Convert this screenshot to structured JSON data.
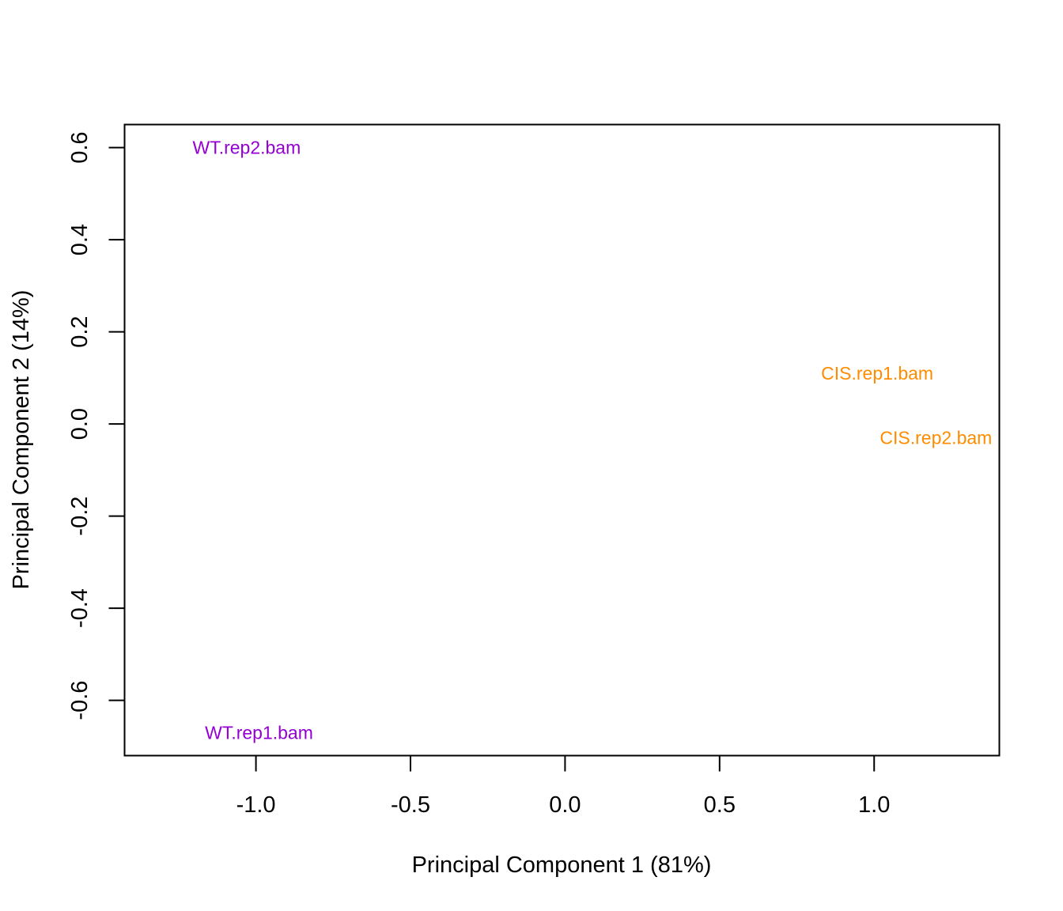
{
  "chart_data": {
    "type": "scatter",
    "title": "",
    "xlabel": "Principal Component 1 (81%)",
    "ylabel": "Principal Component 2 (14%)",
    "xlim": [
      -1.425,
      1.405
    ],
    "ylim": [
      -0.72,
      0.65
    ],
    "xticks": [
      -1.0,
      -0.5,
      0.0,
      0.5,
      1.0
    ],
    "xtick_labels": [
      "-1.0",
      "-0.5",
      "0.0",
      "0.5",
      "1.0"
    ],
    "yticks": [
      -0.6,
      -0.4,
      -0.2,
      0.0,
      0.2,
      0.4,
      0.6
    ],
    "ytick_labels": [
      "-0.6",
      "-0.4",
      "-0.2",
      "0.0",
      "0.2",
      "0.4",
      "0.6"
    ],
    "grid": false,
    "markers": "text labels",
    "points": [
      {
        "label": "WT.rep2.bam",
        "x": -1.03,
        "y": 0.6,
        "color": "#9400D3"
      },
      {
        "label": "WT.rep1.bam",
        "x": -0.99,
        "y": -0.67,
        "color": "#9400D3"
      },
      {
        "label": "CIS.rep1.bam",
        "x": 1.01,
        "y": 0.11,
        "color": "#FF8C00"
      },
      {
        "label": "CIS.rep2.bam",
        "x": 1.2,
        "y": -0.03,
        "color": "#FF8C00"
      }
    ]
  }
}
